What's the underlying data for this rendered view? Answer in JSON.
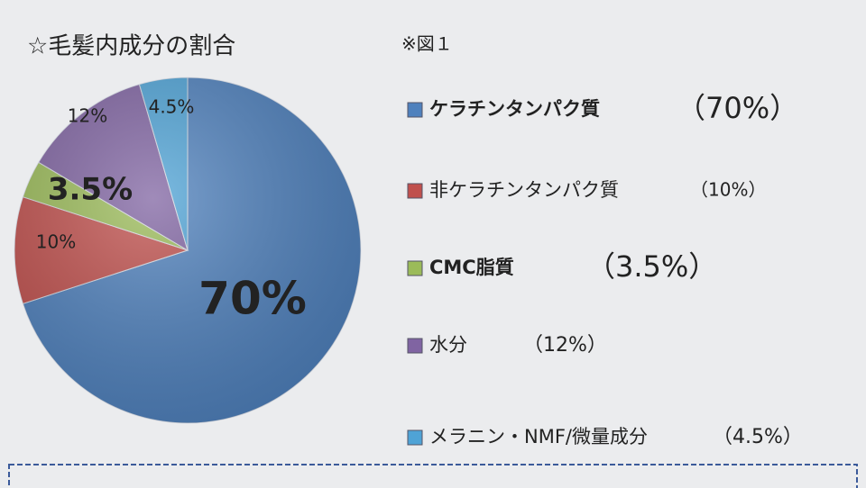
{
  "chart_data": {
    "type": "pie",
    "title": "☆毛髪内成分の割合",
    "note": "※図１",
    "categories": [
      "ケラチンタンパク質",
      "非ケラチンタンパク質",
      "CMC脂質",
      "水分",
      "メラニン・NMF/微量成分"
    ],
    "values": [
      70,
      10,
      3.5,
      12,
      4.5
    ],
    "value_labels": [
      "70%",
      "10%",
      "3.5%",
      "12%",
      "4.5%"
    ],
    "legend_value_labels": [
      "（70%）",
      "（10%）",
      "（3.5%）",
      "（12%）",
      "（4.5%）"
    ],
    "colors": [
      "#4f81bd",
      "#c0504d",
      "#9bbb59",
      "#8064a2",
      "#4fa3d6"
    ]
  }
}
